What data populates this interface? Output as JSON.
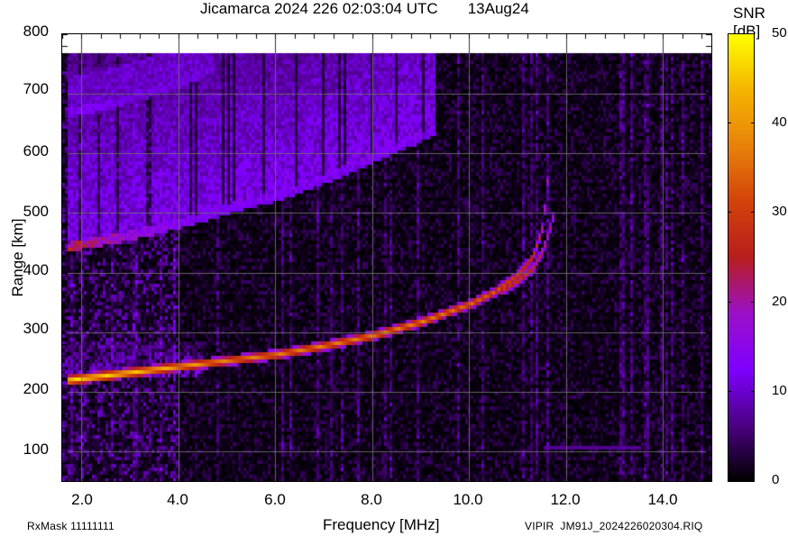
{
  "header": {
    "title": "Jicamarca 2024 226 02:03:04 UTC       13Aug24",
    "station": "Jicamarca",
    "year": "2024",
    "doy": "226",
    "time": "02:03:04 UTC",
    "date": "13Aug24"
  },
  "footer": {
    "rxmask": "RxMask 11111111",
    "file": "VIPIR  JM91J_2024226020304.RIQ"
  },
  "colorbar": {
    "title": "SNR [dB]",
    "min": 0,
    "max": 50,
    "ticks": [
      "50",
      "40",
      "30",
      "20",
      "10",
      "0"
    ],
    "stops": [
      "#000000",
      "#4b0082",
      "#7f00ff",
      "#9b10c8",
      "#b81e1e",
      "#d2420a",
      "#e8820a",
      "#f4b400",
      "#ffff00"
    ]
  },
  "axes": {
    "xlabel": "Frequency [MHz]",
    "ylabel": "Range [km]",
    "xticks": [
      "2.0",
      "4.0",
      "6.0",
      "8.0",
      "10.0",
      "12.0",
      "14.0"
    ],
    "yticks": [
      "800",
      "700",
      "600",
      "500",
      "400",
      "300",
      "200",
      "100"
    ]
  },
  "chart_data": {
    "type": "heatmap",
    "title": "Jicamarca 2024 226 02:03:04 UTC 13Aug24",
    "xlabel": "Frequency [MHz]",
    "ylabel": "Range [km]",
    "xlim": [
      1.6,
      15.0
    ],
    "ylim": [
      40,
      800
    ],
    "zlabel": "SNR [dB]",
    "zlim": [
      0,
      50
    ],
    "grid": true,
    "x_ticks": [
      2.0,
      4.0,
      6.0,
      8.0,
      10.0,
      12.0,
      14.0
    ],
    "y_ticks": [
      100,
      200,
      300,
      400,
      500,
      600,
      700,
      800
    ],
    "series": [
      {
        "name": "F-layer O-trace (first hop)",
        "x": [
          1.7,
          2.0,
          3.0,
          4.0,
          5.0,
          6.0,
          7.0,
          8.0,
          9.0,
          10.0,
          10.5,
          11.0,
          11.3,
          11.5,
          11.6
        ],
        "y": [
          222,
          225,
          235,
          245,
          255,
          265,
          280,
          297,
          320,
          350,
          370,
          400,
          430,
          480,
          560
        ],
        "snr_db": [
          48,
          48,
          46,
          42,
          38,
          38,
          38,
          38,
          38,
          36,
          34,
          32,
          30,
          26,
          22
        ]
      },
      {
        "name": "F-layer X-trace",
        "x": [
          10.6,
          11.0,
          11.3,
          11.5,
          11.7,
          11.75
        ],
        "y": [
          370,
          390,
          410,
          440,
          490,
          520
        ],
        "snr_db": [
          30,
          30,
          28,
          26,
          22,
          18
        ]
      },
      {
        "name": "Second hop lower edge",
        "x": [
          1.7,
          2.0,
          3.0,
          4.0,
          4.7,
          5.0,
          6.0,
          7.0,
          8.0,
          9.0,
          9.3
        ],
        "y": [
          445,
          450,
          465,
          485,
          500,
          510,
          530,
          560,
          595,
          630,
          645
        ],
        "snr_db": [
          28,
          26,
          20,
          16,
          14,
          14,
          14,
          14,
          14,
          14,
          14
        ]
      },
      {
        "name": "Third hop lower edge",
        "x": [
          1.7,
          2.0,
          3.0,
          4.0,
          4.7
        ],
        "y": [
          670,
          675,
          695,
          720,
          745
        ],
        "snr_db": [
          14,
          14,
          12,
          12,
          12
        ]
      },
      {
        "name": "Interference line",
        "x": [
          11.5,
          13.5
        ],
        "y": [
          110,
          110
        ],
        "snr_db": [
          8,
          8
        ]
      }
    ]
  }
}
